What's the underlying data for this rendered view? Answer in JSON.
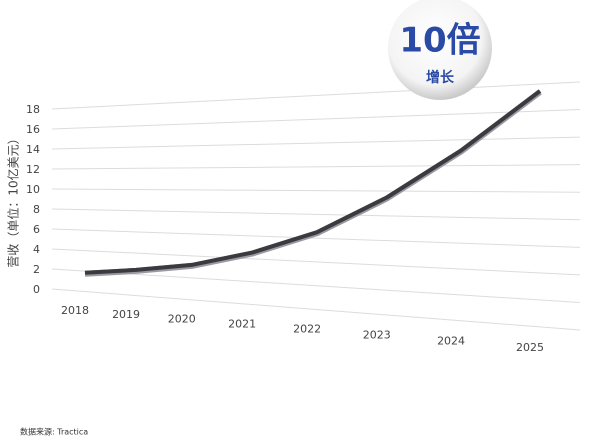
{
  "chart_data": {
    "type": "line",
    "ylabel": "营收（单位：10亿美元）",
    "categories": [
      "2018",
      "2019",
      "2020",
      "2021",
      "2022",
      "2023",
      "2024",
      "2025"
    ],
    "series": [
      {
        "name": "营收",
        "color": "#3a3a3f",
        "values": [
          1.7,
          2.3,
          3.1,
          4.5,
          6.5,
          9.5,
          13.2,
          17.5
        ]
      }
    ],
    "ylim": [
      0,
      18
    ],
    "yticks": [
      0,
      2,
      4,
      6,
      8,
      10,
      12,
      14,
      16,
      18
    ],
    "grid": true,
    "badge": {
      "main": "10倍",
      "sub": "增长"
    },
    "source": "数据来源: Tractica"
  }
}
